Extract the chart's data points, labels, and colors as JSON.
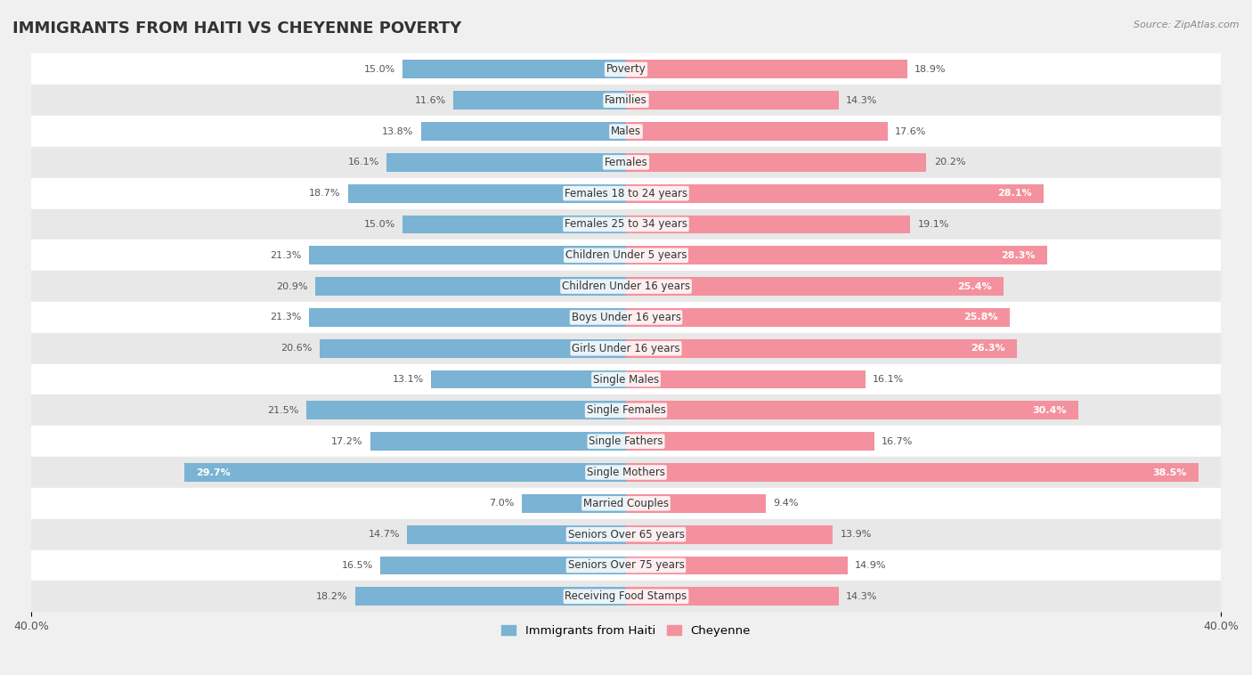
{
  "title": "IMMIGRANTS FROM HAITI VS CHEYENNE POVERTY",
  "source": "Source: ZipAtlas.com",
  "categories": [
    "Poverty",
    "Families",
    "Males",
    "Females",
    "Females 18 to 24 years",
    "Females 25 to 34 years",
    "Children Under 5 years",
    "Children Under 16 years",
    "Boys Under 16 years",
    "Girls Under 16 years",
    "Single Males",
    "Single Females",
    "Single Fathers",
    "Single Mothers",
    "Married Couples",
    "Seniors Over 65 years",
    "Seniors Over 75 years",
    "Receiving Food Stamps"
  ],
  "haiti_values": [
    15.0,
    11.6,
    13.8,
    16.1,
    18.7,
    15.0,
    21.3,
    20.9,
    21.3,
    20.6,
    13.1,
    21.5,
    17.2,
    29.7,
    7.0,
    14.7,
    16.5,
    18.2
  ],
  "cheyenne_values": [
    18.9,
    14.3,
    17.6,
    20.2,
    28.1,
    19.1,
    28.3,
    25.4,
    25.8,
    26.3,
    16.1,
    30.4,
    16.7,
    38.5,
    9.4,
    13.9,
    14.9,
    14.3
  ],
  "haiti_color": "#7ab3d3",
  "cheyenne_color": "#f4919e",
  "haiti_label": "Immigrants from Haiti",
  "cheyenne_label": "Cheyenne",
  "x_max": 40.0,
  "background_color": "#f0f0f0",
  "row_colors": [
    "#ffffff",
    "#e8e8e8"
  ],
  "title_fontsize": 13,
  "label_fontsize": 8.5,
  "value_fontsize": 8,
  "legend_fontsize": 9.5
}
